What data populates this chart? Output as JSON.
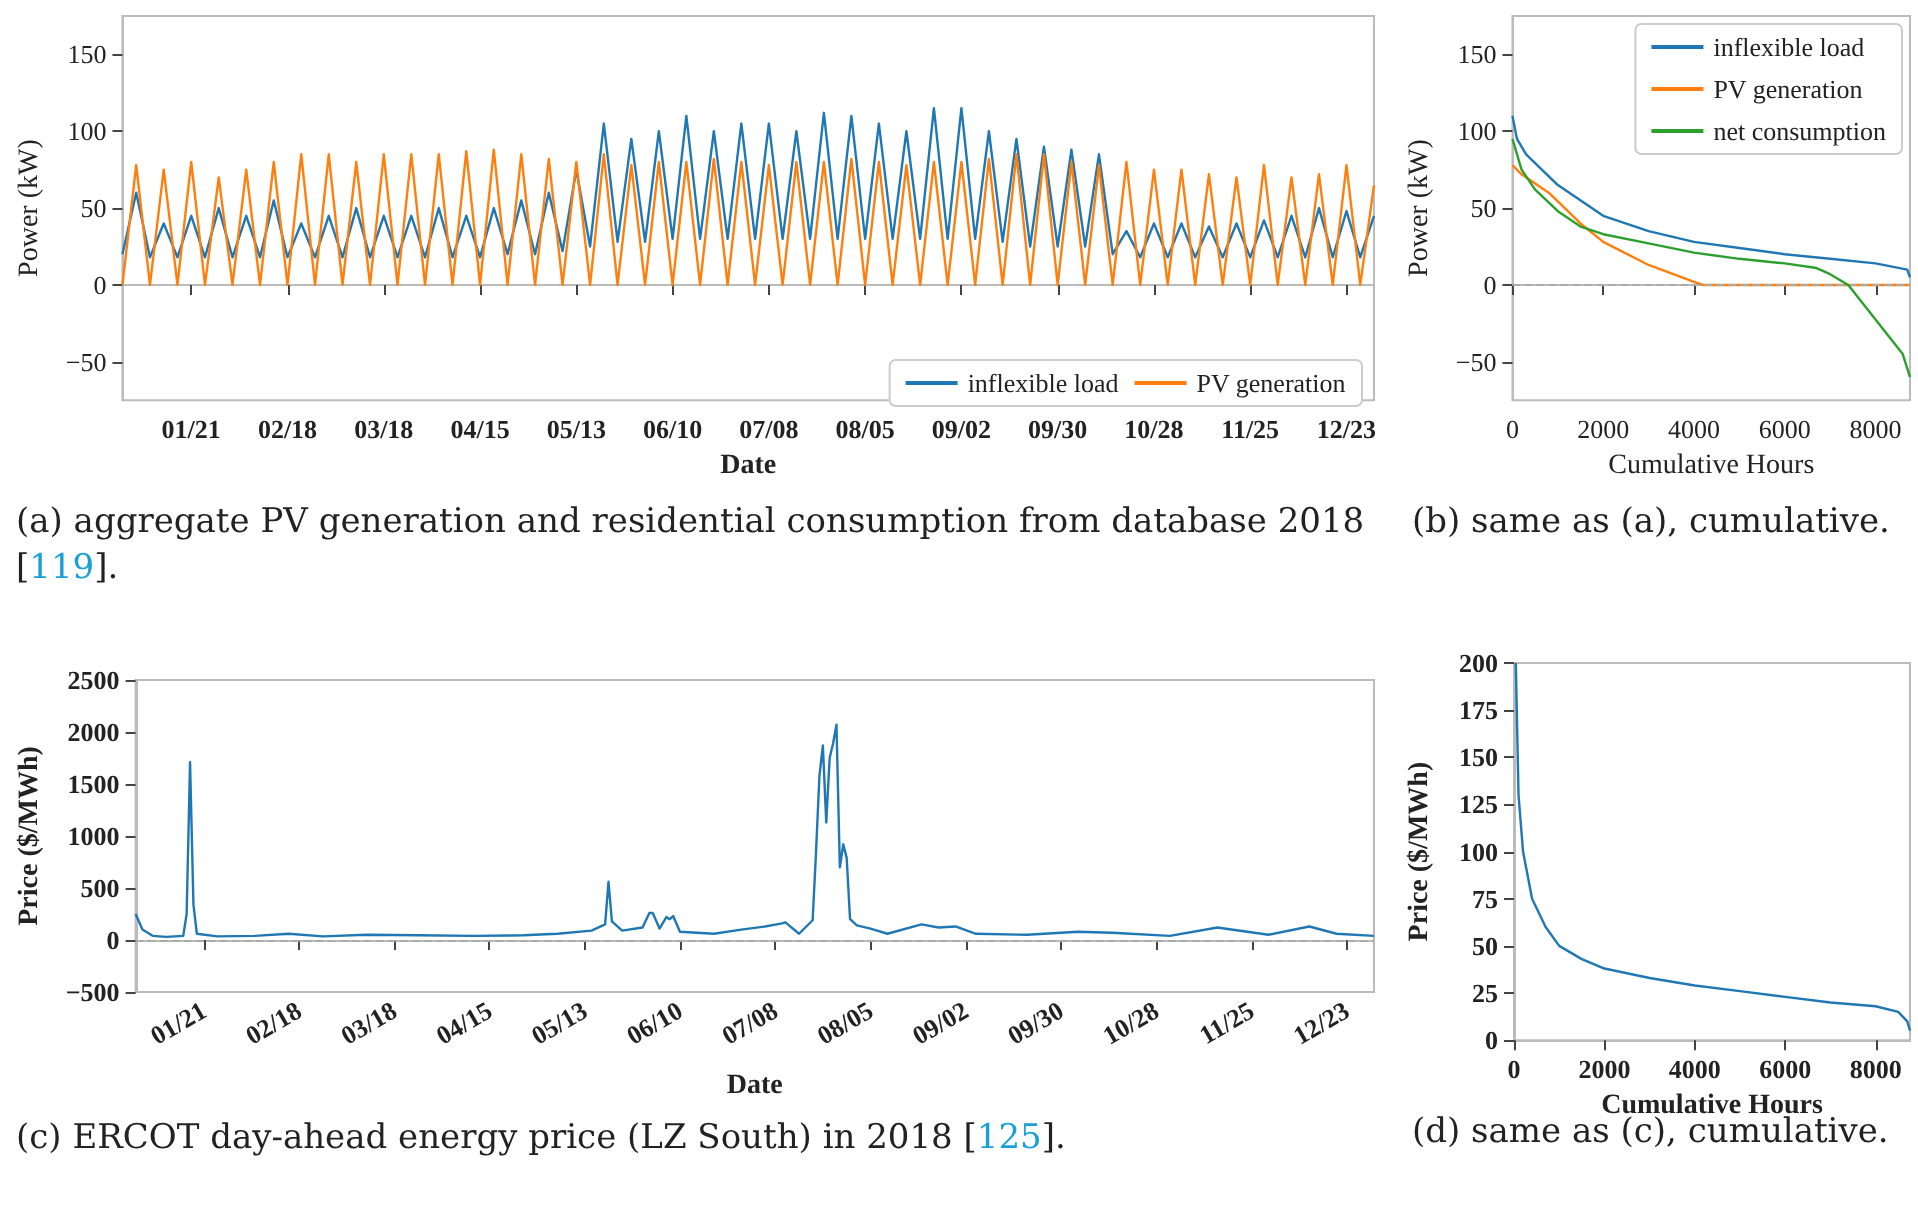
{
  "chart_data": [
    {
      "type": "line",
      "xlabel": "Date",
      "ylabel": "Power (kW)",
      "annotations": [
        "(a) aggregate PV generation and residential consumption from database 2018 [119]."
      ],
      "xlim": [
        "2018-01-01",
        "2018-12-31"
      ],
      "xticks": [
        {
          "value": "2018-01-21",
          "label": "01/21"
        },
        {
          "value": "2018-02-18",
          "label": "02/18"
        },
        {
          "value": "2018-03-18",
          "label": "03/18"
        },
        {
          "value": "2018-04-15",
          "label": "04/15"
        },
        {
          "value": "2018-05-13",
          "label": "05/13"
        },
        {
          "value": "2018-06-10",
          "label": "06/10"
        },
        {
          "value": "2018-07-08",
          "label": "07/08"
        },
        {
          "value": "2018-08-05",
          "label": "08/05"
        },
        {
          "value": "2018-09-02",
          "label": "09/02"
        },
        {
          "value": "2018-09-30",
          "label": "09/30"
        },
        {
          "value": "2018-10-28",
          "label": "10/28"
        },
        {
          "value": "2018-11-25",
          "label": "11/25"
        },
        {
          "value": "2018-12-23",
          "label": "12/23"
        }
      ],
      "ylim": [
        -75,
        175
      ],
      "yticks": [
        -50,
        0,
        50,
        100,
        150
      ],
      "legend": "bottom right",
      "x": [
        "2018-01-01",
        "2018-01-05",
        "2018-01-09",
        "2018-01-13",
        "2018-01-17",
        "2018-01-21",
        "2018-01-25",
        "2018-01-29",
        "2018-02-02",
        "2018-02-06",
        "2018-02-10",
        "2018-02-14",
        "2018-02-18",
        "2018-02-22",
        "2018-02-26",
        "2018-03-02",
        "2018-03-06",
        "2018-03-10",
        "2018-03-14",
        "2018-03-18",
        "2018-03-22",
        "2018-03-26",
        "2018-03-30",
        "2018-04-03",
        "2018-04-07",
        "2018-04-11",
        "2018-04-15",
        "2018-04-19",
        "2018-04-23",
        "2018-04-27",
        "2018-05-01",
        "2018-05-05",
        "2018-05-09",
        "2018-05-13",
        "2018-05-17",
        "2018-05-21",
        "2018-05-25",
        "2018-05-29",
        "2018-06-02",
        "2018-06-06",
        "2018-06-10",
        "2018-06-14",
        "2018-06-18",
        "2018-06-22",
        "2018-06-26",
        "2018-06-30",
        "2018-07-04",
        "2018-07-08",
        "2018-07-12",
        "2018-07-16",
        "2018-07-20",
        "2018-07-24",
        "2018-07-28",
        "2018-08-01",
        "2018-08-05",
        "2018-08-09",
        "2018-08-13",
        "2018-08-17",
        "2018-08-21",
        "2018-08-25",
        "2018-08-29",
        "2018-09-02",
        "2018-09-06",
        "2018-09-10",
        "2018-09-14",
        "2018-09-18",
        "2018-09-22",
        "2018-09-26",
        "2018-09-30",
        "2018-10-04",
        "2018-10-08",
        "2018-10-12",
        "2018-10-16",
        "2018-10-20",
        "2018-10-24",
        "2018-10-28",
        "2018-11-01",
        "2018-11-05",
        "2018-11-09",
        "2018-11-13",
        "2018-11-17",
        "2018-11-21",
        "2018-11-25",
        "2018-11-29",
        "2018-12-03",
        "2018-12-07",
        "2018-12-11",
        "2018-12-15",
        "2018-12-19",
        "2018-12-23",
        "2018-12-27",
        "2018-12-31"
      ],
      "series": [
        {
          "name": "inflexible load",
          "color": "#1f77b4",
          "values": [
            20,
            60,
            18,
            40,
            18,
            45,
            18,
            50,
            18,
            45,
            18,
            55,
            18,
            40,
            18,
            45,
            18,
            50,
            18,
            45,
            18,
            45,
            18,
            50,
            18,
            45,
            18,
            50,
            20,
            55,
            20,
            60,
            22,
            75,
            25,
            105,
            28,
            95,
            28,
            100,
            30,
            110,
            30,
            100,
            30,
            105,
            30,
            105,
            30,
            100,
            30,
            112,
            30,
            110,
            30,
            105,
            30,
            100,
            30,
            115,
            30,
            115,
            30,
            100,
            28,
            95,
            25,
            90,
            25,
            88,
            25,
            85,
            20,
            35,
            18,
            40,
            18,
            40,
            18,
            38,
            18,
            40,
            18,
            42,
            18,
            45,
            18,
            50,
            18,
            48,
            18,
            45
          ]
        },
        {
          "name": "PV generation",
          "color": "#ff7f0e",
          "values": [
            0,
            78,
            0,
            75,
            0,
            80,
            0,
            70,
            0,
            75,
            0,
            80,
            0,
            85,
            0,
            85,
            0,
            80,
            0,
            85,
            0,
            85,
            0,
            85,
            0,
            87,
            0,
            88,
            0,
            85,
            0,
            82,
            0,
            80,
            0,
            85,
            0,
            78,
            0,
            80,
            0,
            80,
            0,
            82,
            0,
            80,
            0,
            78,
            0,
            80,
            0,
            80,
            0,
            82,
            0,
            80,
            0,
            78,
            0,
            80,
            0,
            80,
            0,
            82,
            0,
            85,
            0,
            85,
            0,
            80,
            0,
            78,
            0,
            80,
            0,
            75,
            0,
            75,
            0,
            72,
            0,
            70,
            0,
            78,
            0,
            70,
            0,
            72,
            0,
            78,
            0,
            65
          ]
        }
      ]
    },
    {
      "type": "line",
      "xlabel": "Cumulative Hours",
      "ylabel": "Power (kW)",
      "annotations": [
        "(b) same as (a), cumulative."
      ],
      "xlim": [
        0,
        8760
      ],
      "xticks": [
        0,
        2000,
        4000,
        6000,
        8000
      ],
      "ylim": [
        -75,
        175
      ],
      "yticks": [
        -50,
        0,
        50,
        100,
        150
      ],
      "legend": "top right",
      "ref_lines": [
        {
          "axis": "y",
          "value": 0,
          "color": "#aaaaaa",
          "line_style": "dashed"
        }
      ],
      "series": [
        {
          "name": "inflexible load",
          "color": "#1f77b4",
          "x": [
            0,
            100,
            300,
            1000,
            2000,
            3000,
            4000,
            5000,
            6000,
            7000,
            8000,
            8700,
            8760
          ],
          "values": [
            110,
            95,
            85,
            65,
            45,
            35,
            28,
            24,
            20,
            17,
            14,
            10,
            5
          ]
        },
        {
          "name": "PV generation",
          "color": "#ff7f0e",
          "x": [
            0,
            200,
            800,
            1500,
            2000,
            3000,
            4000,
            4200,
            8760
          ],
          "values": [
            78,
            72,
            60,
            40,
            28,
            13,
            2,
            0,
            0
          ]
        },
        {
          "name": "net consumption",
          "color": "#2ca02c",
          "x": [
            0,
            200,
            500,
            1000,
            1500,
            2000,
            3000,
            4000,
            5000,
            6000,
            6700,
            7000,
            7400,
            7800,
            8200,
            8600,
            8760
          ],
          "values": [
            95,
            75,
            62,
            48,
            38,
            33,
            27,
            21,
            17,
            14,
            11,
            7,
            0,
            -15,
            -30,
            -45,
            -60
          ]
        }
      ]
    },
    {
      "type": "line",
      "xlabel": "Date",
      "ylabel": "Price ($/MWh)",
      "annotations": [
        "(c) ERCOT day-ahead energy price (LZ South) in 2018 [125]."
      ],
      "xlim": [
        "2018-01-01",
        "2018-12-31"
      ],
      "xticks": [
        {
          "value": "2018-01-21",
          "label": "01/21"
        },
        {
          "value": "2018-02-18",
          "label": "02/18"
        },
        {
          "value": "2018-03-18",
          "label": "03/18"
        },
        {
          "value": "2018-04-15",
          "label": "04/15"
        },
        {
          "value": "2018-05-13",
          "label": "05/13"
        },
        {
          "value": "2018-06-10",
          "label": "06/10"
        },
        {
          "value": "2018-07-08",
          "label": "07/08"
        },
        {
          "value": "2018-08-05",
          "label": "08/05"
        },
        {
          "value": "2018-09-02",
          "label": "09/02"
        },
        {
          "value": "2018-09-30",
          "label": "09/30"
        },
        {
          "value": "2018-10-28",
          "label": "10/28"
        },
        {
          "value": "2018-11-25",
          "label": "11/25"
        },
        {
          "value": "2018-12-23",
          "label": "12/23"
        }
      ],
      "ylim": [
        -500,
        2500
      ],
      "yticks": [
        -500,
        0,
        500,
        1000,
        1500,
        2000,
        2500
      ],
      "ref_lines": [
        {
          "axis": "y",
          "value": 0,
          "color": "#aaaaaa",
          "line_style": "dashed"
        }
      ],
      "series": [
        {
          "color": "#1f77b4",
          "x": [
            "2018-01-01",
            "2018-01-03",
            "2018-01-06",
            "2018-01-10",
            "2018-01-15",
            "2018-01-16",
            "2018-01-17",
            "2018-01-18",
            "2018-01-19",
            "2018-01-25",
            "2018-02-05",
            "2018-02-15",
            "2018-02-25",
            "2018-03-10",
            "2018-03-25",
            "2018-04-10",
            "2018-04-25",
            "2018-05-05",
            "2018-05-15",
            "2018-05-19",
            "2018-05-20",
            "2018-05-21",
            "2018-05-24",
            "2018-05-30",
            "2018-06-01",
            "2018-06-02",
            "2018-06-04",
            "2018-06-06",
            "2018-06-07",
            "2018-06-08",
            "2018-06-10",
            "2018-06-20",
            "2018-06-28",
            "2018-07-05",
            "2018-07-10",
            "2018-07-11",
            "2018-07-15",
            "2018-07-19",
            "2018-07-20",
            "2018-07-21",
            "2018-07-22",
            "2018-07-23",
            "2018-07-24",
            "2018-07-25",
            "2018-07-26",
            "2018-07-27",
            "2018-07-28",
            "2018-07-29",
            "2018-07-30",
            "2018-08-01",
            "2018-08-05",
            "2018-08-10",
            "2018-08-20",
            "2018-08-25",
            "2018-08-30",
            "2018-09-05",
            "2018-09-20",
            "2018-10-05",
            "2018-10-15",
            "2018-11-01",
            "2018-11-15",
            "2018-11-17",
            "2018-11-30",
            "2018-12-12",
            "2018-12-20",
            "2018-12-31"
          ],
          "values": [
            250,
            100,
            40,
            30,
            40,
            250,
            1710,
            340,
            60,
            35,
            40,
            60,
            35,
            50,
            45,
            40,
            45,
            60,
            90,
            150,
            560,
            180,
            90,
            120,
            260,
            260,
            110,
            220,
            200,
            230,
            80,
            60,
            100,
            130,
            160,
            170,
            60,
            190,
            850,
            1580,
            1870,
            1130,
            1750,
            1890,
            2070,
            700,
            920,
            790,
            200,
            140,
            110,
            60,
            150,
            120,
            130,
            60,
            50,
            80,
            70,
            40,
            120,
            110,
            50,
            130,
            60,
            40
          ]
        }
      ]
    },
    {
      "type": "line",
      "xlabel": "Cumulative Hours",
      "ylabel": "Price ($/MWh)",
      "annotations": [
        "(d) same as (c), cumulative."
      ],
      "xlim": [
        0,
        8760
      ],
      "xticks": [
        0,
        2000,
        4000,
        6000,
        8000
      ],
      "ylim": [
        0,
        200
      ],
      "yticks": [
        0,
        25,
        50,
        75,
        100,
        125,
        150,
        175,
        200
      ],
      "series": [
        {
          "color": "#1f77b4",
          "x": [
            40,
            100,
            200,
            400,
            700,
            1000,
            1500,
            2000,
            3000,
            4000,
            5000,
            6000,
            7000,
            8000,
            8500,
            8700,
            8760
          ],
          "values": [
            200,
            130,
            100,
            75,
            60,
            50,
            43,
            38,
            33,
            29,
            26,
            23,
            20,
            18,
            15,
            10,
            5
          ]
        }
      ]
    }
  ]
}
